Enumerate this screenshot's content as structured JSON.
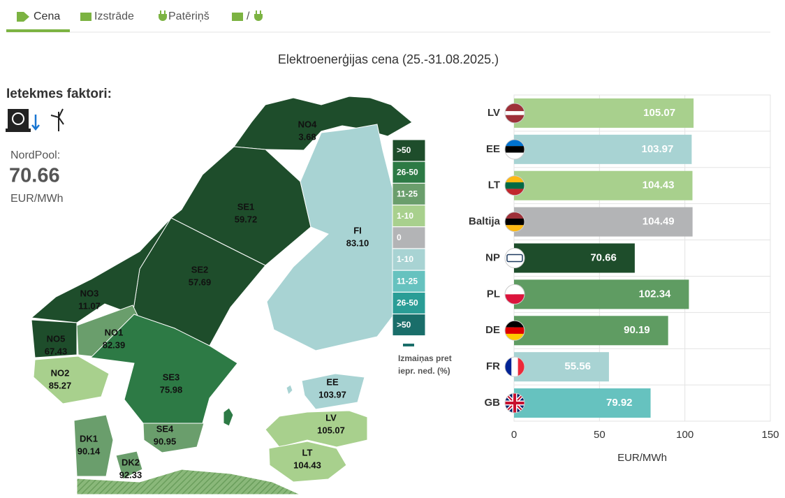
{
  "tabs": [
    "Cena",
    "Izstrāde",
    "Patēriņš",
    "/"
  ],
  "title": "Elektroenerģijas cena (25.-31.08.2025.)",
  "factors": {
    "title": "Ietekmes faktori:"
  },
  "nordpool": {
    "label": "NordPool:",
    "value": "70.66",
    "unit": "EUR/MWh"
  },
  "map": {
    "regions": [
      {
        "name": "NO4",
        "value": "3.68",
        "color": "#1e4d2b"
      },
      {
        "name": "SE1",
        "value": "59.72",
        "color": "#1e4d2b"
      },
      {
        "name": "SE2",
        "value": "57.69",
        "color": "#1e4d2b"
      },
      {
        "name": "NO3",
        "value": "11.07",
        "color": "#1e4d2b"
      },
      {
        "name": "NO5",
        "value": "67.43",
        "color": "#1e4d2b"
      },
      {
        "name": "NO1",
        "value": "82.39",
        "color": "#6a9e6c"
      },
      {
        "name": "NO2",
        "value": "85.27",
        "color": "#a8d08d"
      },
      {
        "name": "SE3",
        "value": "75.98",
        "color": "#2d7a45"
      },
      {
        "name": "SE4",
        "value": "90.95",
        "color": "#6a9e6c"
      },
      {
        "name": "FI",
        "value": "83.10",
        "color": "#a8d3d3"
      },
      {
        "name": "EE",
        "value": "103.97",
        "color": "#a8d3d3"
      },
      {
        "name": "LV",
        "value": "105.07",
        "color": "#a8d08d"
      },
      {
        "name": "LT",
        "value": "104.43",
        "color": "#a8d08d"
      },
      {
        "name": "DK1",
        "value": "90.14",
        "color": "#6a9e6c"
      },
      {
        "name": "DK2",
        "value": "92.33",
        "color": "#6a9e6c"
      }
    ],
    "legend": {
      "items": [
        {
          "label": ">50",
          "color": "#1e4d2b"
        },
        {
          "label": "26-50",
          "color": "#2d7a45"
        },
        {
          "label": "11-25",
          "color": "#6a9e6c"
        },
        {
          "label": "1-10",
          "color": "#a8d08d"
        },
        {
          "label": "0",
          "color": "#b3b4b6"
        },
        {
          "label": "1-10",
          "color": "#a8d3d3"
        },
        {
          "label": "11-25",
          "color": "#66c2bf"
        },
        {
          "label": "26-50",
          "color": "#2a9d96"
        },
        {
          "label": ">50",
          "color": "#1a6e6a"
        }
      ],
      "caption": "Izmaiņas pret iepr. ned. (%)"
    }
  },
  "chart_data": {
    "type": "bar",
    "orientation": "horizontal",
    "categories": [
      "LV",
      "EE",
      "LT",
      "Baltija",
      "NP",
      "PL",
      "DE",
      "FR",
      "GB"
    ],
    "values": [
      105.07,
      103.97,
      104.43,
      104.49,
      70.66,
      102.34,
      90.19,
      55.56,
      79.92
    ],
    "colors": [
      "#a8d08d",
      "#a8d3d3",
      "#a8d08d",
      "#b3b4b6",
      "#1e4d2b",
      "#5f9c62",
      "#5f9c62",
      "#a8d3d3",
      "#66c2bf"
    ],
    "xlim": [
      0,
      150
    ],
    "xticks": [
      0,
      50,
      100,
      150
    ],
    "xlabel": "EUR/MWh",
    "grid": true
  }
}
